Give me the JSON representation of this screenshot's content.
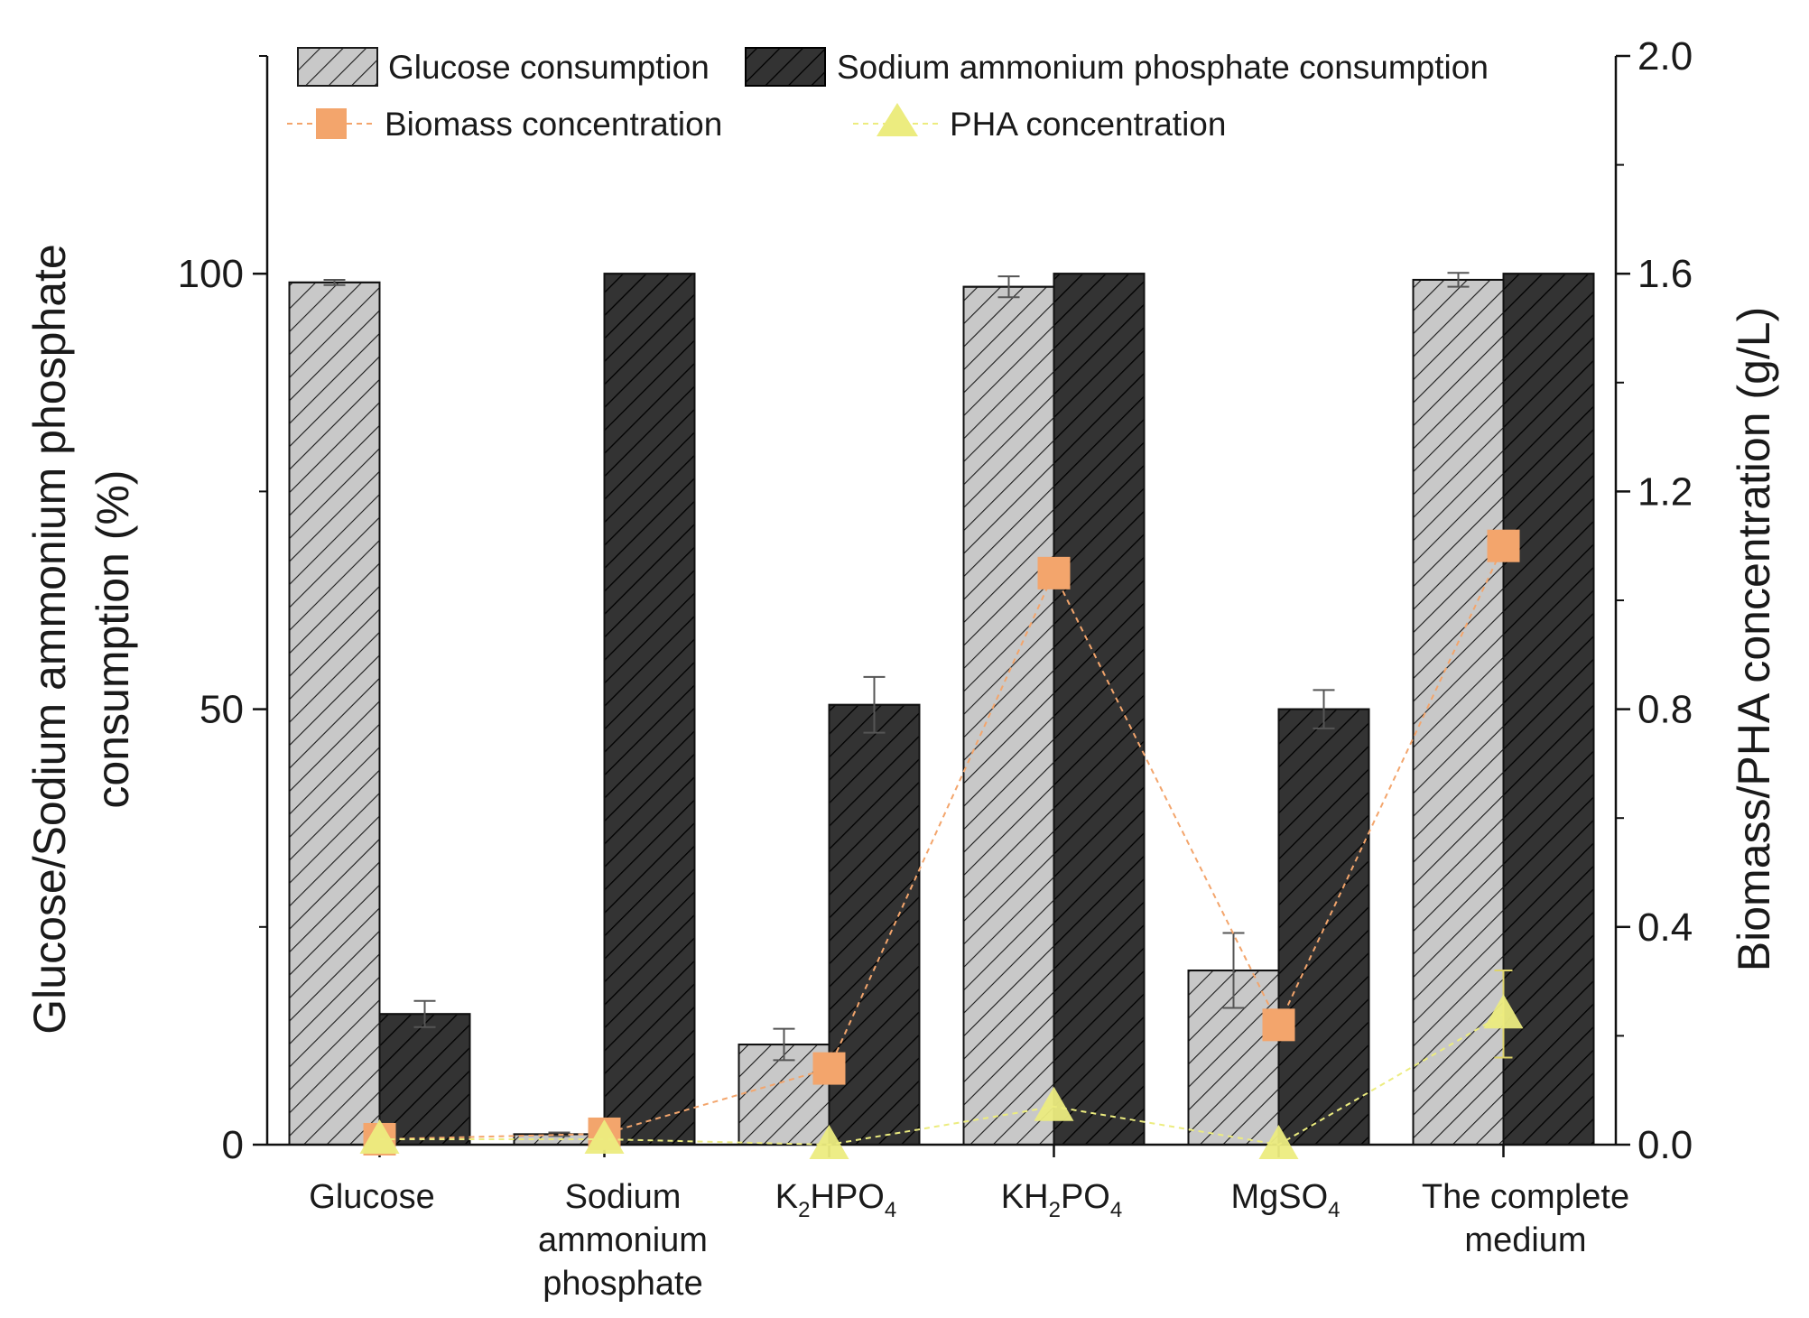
{
  "chart_data": {
    "type": "bar",
    "categories": [
      {
        "lines": [
          {
            "t": "Glucose"
          }
        ]
      },
      {
        "lines": [
          {
            "t": "Sodium"
          },
          {
            "t": "ammonium"
          },
          {
            "t": "phosphate"
          }
        ]
      },
      {
        "lines": [
          {
            "t": "K",
            "sub": [
              {
                "b": "2"
              },
              {
                "t": "HPO"
              },
              {
                "b": "4"
              }
            ]
          }
        ]
      },
      {
        "lines": [
          {
            "t": "KH",
            "sub": [
              {
                "b": "2"
              },
              {
                "t": "PO"
              },
              {
                "b": "4"
              }
            ]
          }
        ]
      },
      {
        "lines": [
          {
            "t": "MgSO",
            "sub": [
              {
                "b": "4"
              }
            ]
          }
        ]
      },
      {
        "lines": [
          {
            "t": "The complete"
          },
          {
            "t": "medium"
          }
        ]
      }
    ],
    "left_axis": {
      "label_line1": "Glucose/Sodium ammonium phosphate",
      "label_line2": "consumption (%)",
      "range": [
        0,
        125
      ],
      "ticks": [
        0,
        50,
        100
      ],
      "tick_labels": [
        "0",
        "50",
        "100"
      ],
      "minor_ticks": [
        25,
        75,
        125
      ]
    },
    "right_axis": {
      "label": "Biomass/PHA concentration (g/L)",
      "range": [
        0,
        2.0
      ],
      "ticks": [
        0,
        0.4,
        0.8,
        1.2,
        1.6,
        2.0
      ],
      "tick_labels": [
        "0.0",
        "0.4",
        "0.8",
        "1.2",
        "1.6",
        "2.0"
      ],
      "minor_ticks": [
        0.2,
        0.6,
        1.0,
        1.4,
        1.8
      ]
    },
    "bar_series": [
      {
        "name": "Glucose consumption",
        "color": "#c8c8c8",
        "values": [
          99.0,
          1.2,
          11.5,
          98.5,
          20.0,
          99.3
        ],
        "errors": [
          0.3,
          0.2,
          1.8,
          1.2,
          4.3,
          0.8
        ]
      },
      {
        "name": "Sodium ammonium phosphate consumption",
        "color": "#333333",
        "values": [
          15.0,
          100,
          50.5,
          100,
          50.0,
          100
        ],
        "errors": [
          1.5,
          0,
          3.2,
          0,
          2.2,
          0
        ]
      }
    ],
    "line_series": [
      {
        "name": "Biomass concentration",
        "marker": "square",
        "color": "#f3a56c",
        "values": [
          0.01,
          0.02,
          0.14,
          1.05,
          0.22,
          1.1
        ],
        "errors": [
          0,
          0,
          0,
          0,
          0,
          0
        ]
      },
      {
        "name": "PHA concentration",
        "marker": "triangle",
        "color": "#ecec7f",
        "values": [
          0.01,
          0.01,
          0.0,
          0.07,
          0.0,
          0.24
        ],
        "errors": [
          0,
          0,
          0,
          0,
          0,
          0.08
        ]
      }
    ],
    "legend_position": "top",
    "grid": false
  }
}
